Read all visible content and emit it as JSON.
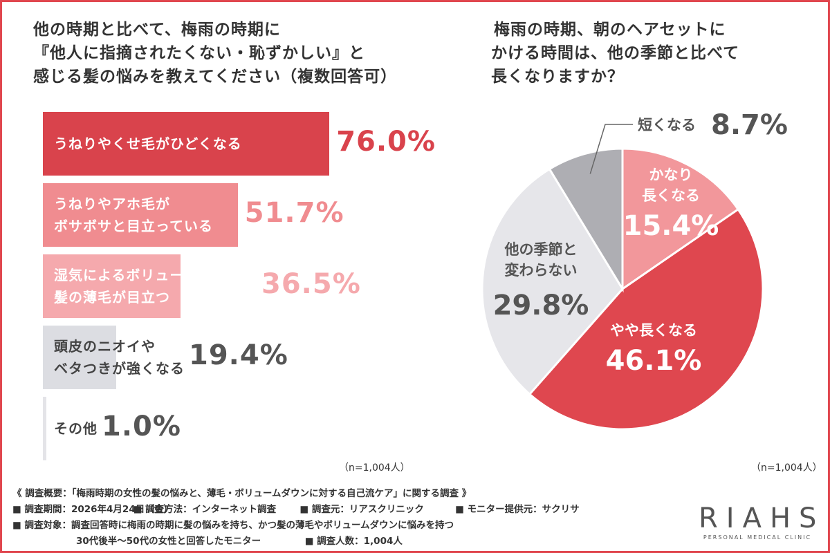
{
  "left_chart": {
    "title_lines": [
      "他の時期と比べて、梅雨の時期に",
      "『他人に指摘されたくない・恥ずかしい』と",
      "感じる髪の悩みを教えてください（複数回答可）"
    ],
    "n_note": "（n=1,004人）"
  },
  "right_chart": {
    "title_lines": [
      "梅雨の時期、朝のヘアセットに",
      "かける時間は、他の季節と比べて",
      "長くなりますか？"
    ],
    "n_note": "（n=1,004人）"
  },
  "chart_data": [
    {
      "type": "bar",
      "orientation": "horizontal",
      "categories": [
        [
          "うねりやくせ毛がひどくなる"
        ],
        [
          "うねりやアホ毛が",
          "ボサボサと目立っている"
        ],
        [
          "湿気によるボリュームダウンで",
          "髪の薄毛が目立つ"
        ],
        [
          "頭皮のニオイや",
          "ベタつきが強くなる"
        ],
        [
          "その他"
        ]
      ],
      "values": [
        76.0,
        51.7,
        36.5,
        19.4,
        1.0
      ],
      "value_labels": [
        "76.0%",
        "51.7%",
        "36.5%",
        "19.4%",
        "1.0%"
      ],
      "colors": [
        "#d9434c",
        "#f08c90",
        "#f5a9ad",
        "#dcdde2",
        "#e4e4e8"
      ],
      "label_colors": [
        "#ffffff",
        "#ffffff",
        "#ffffff",
        "#444444",
        "#444444"
      ],
      "value_colors": [
        "#d9434c",
        "#f08c90",
        "#f5a9ad",
        "#555555",
        "#555555"
      ],
      "xlim": [
        0,
        100
      ]
    },
    {
      "type": "pie",
      "slices": [
        {
          "label_lines": [
            "かなり",
            "長くなる"
          ],
          "value": 15.4,
          "value_label": "15.4%",
          "color": "#f2979b",
          "text_color": "#ffffff"
        },
        {
          "label_lines": [
            "やや長くなる"
          ],
          "value": 46.1,
          "value_label": "46.1%",
          "color": "#df474f",
          "text_color": "#ffffff"
        },
        {
          "label_lines": [
            "他の季節と",
            "変わらない"
          ],
          "value": 29.8,
          "value_label": "29.8%",
          "color": "#e6e6ea",
          "text_color": "#555555"
        },
        {
          "label_lines": [
            "短くなる"
          ],
          "value": 8.7,
          "value_label": "8.7%",
          "color": "#aeaeb3",
          "text_color": "#555555"
        }
      ]
    }
  ],
  "summary": {
    "heading": "《 調査概要：「梅雨時期の女性の髪の悩みと、薄毛・ボリュームダウンに対する自己流ケア」に関する調査 》",
    "period": "■ 調査期間：2026年4月24日（金）",
    "method": "■ 調査方法：インターネット調査",
    "source": "■ 調査元：リアスクリニック",
    "provider": "■ モニター提供元：サクリサ",
    "target_line1": "■ 調査対象：調査回答時に梅雨の時期に髪の悩みを持ち、かつ髪の薄毛やボリュームダウンに悩みを持つ",
    "target_line2": "30代後半〜50代の女性と回答したモニター",
    "count": "■ 調査人数：1,004人"
  },
  "logo": {
    "main": "RIAHS",
    "sub": "PERSONAL MEDICAL CLINIC"
  }
}
